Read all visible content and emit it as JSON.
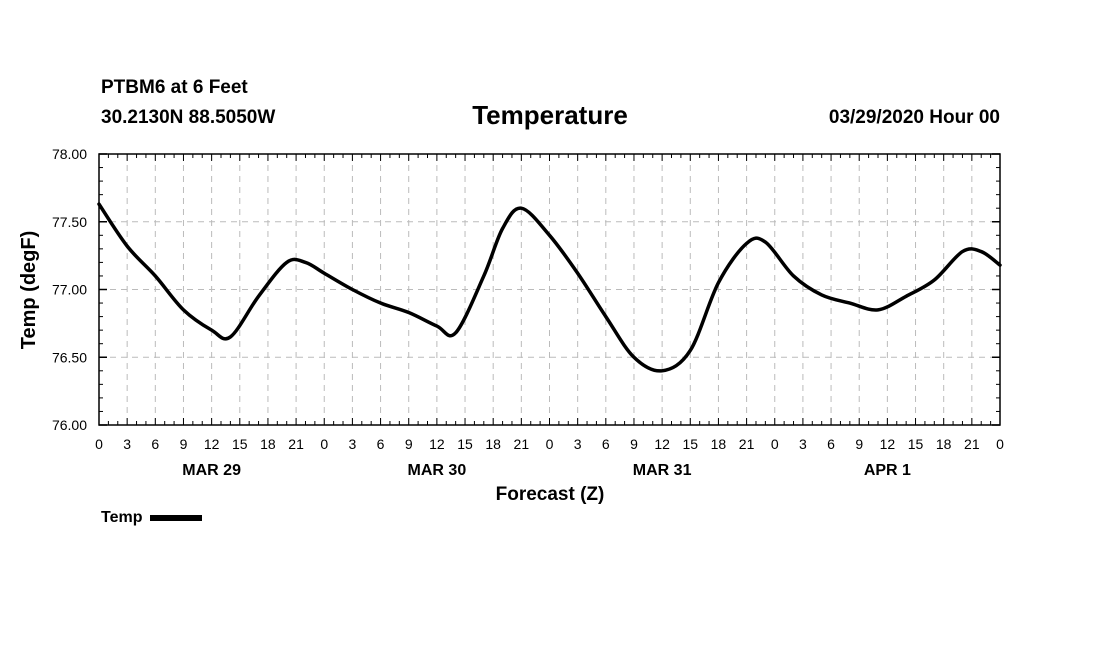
{
  "header": {
    "station": "PTBM6 at 6 Feet",
    "coords": "30.2130N 88.5050W",
    "datetime": "03/29/2020 Hour 00"
  },
  "legend": {
    "label": "Temp"
  },
  "colors": {
    "line": "#000000",
    "grid": "#bbbbbb",
    "background": "#ffffff"
  },
  "chart_data": {
    "type": "line",
    "title": "Temperature",
    "xlabel": "Forecast (Z)",
    "ylabel": "Temp (degF)",
    "ylim": [
      76.0,
      78.0
    ],
    "xlim": [
      0,
      96
    ],
    "x_unit": "hours since 03/29/2020 00Z",
    "y_ticks": [
      "76.00",
      "76.50",
      "77.00",
      "77.50",
      "78.00"
    ],
    "y_tick_values": [
      76.0,
      76.5,
      77.0,
      77.5,
      78.0
    ],
    "x_tick_labels": [
      "0",
      "3",
      "6",
      "9",
      "12",
      "15",
      "18",
      "21",
      "0",
      "3",
      "6",
      "9",
      "12",
      "15",
      "18",
      "21",
      "0",
      "3",
      "6",
      "9",
      "12",
      "15",
      "18",
      "21",
      "0",
      "3",
      "6",
      "9",
      "12",
      "15",
      "18",
      "21",
      "0"
    ],
    "day_labels": [
      {
        "label": "MAR 29",
        "x": 12
      },
      {
        "label": "MAR 30",
        "x": 36
      },
      {
        "label": "MAR 31",
        "x": 60
      },
      {
        "label": "APR 1",
        "x": 84
      }
    ],
    "grid": true,
    "legend_position": "bottom-left",
    "series": [
      {
        "name": "Temp",
        "x": [
          0,
          3,
          6,
          9,
          12,
          14,
          17,
          20,
          22,
          24,
          27,
          30,
          33,
          36,
          38,
          41,
          43,
          45,
          48,
          51,
          54,
          57,
          60,
          63,
          66,
          69,
          71,
          74,
          77,
          80,
          83,
          86,
          89,
          92,
          94,
          96
        ],
        "values": [
          77.63,
          77.32,
          77.1,
          76.85,
          76.7,
          76.65,
          76.95,
          77.2,
          77.2,
          77.12,
          77.0,
          76.9,
          76.83,
          76.73,
          76.68,
          77.1,
          77.45,
          77.6,
          77.4,
          77.12,
          76.8,
          76.5,
          76.4,
          76.55,
          77.05,
          77.34,
          77.35,
          77.1,
          76.96,
          76.9,
          76.85,
          76.95,
          77.07,
          77.28,
          77.28,
          77.18
        ]
      }
    ]
  }
}
